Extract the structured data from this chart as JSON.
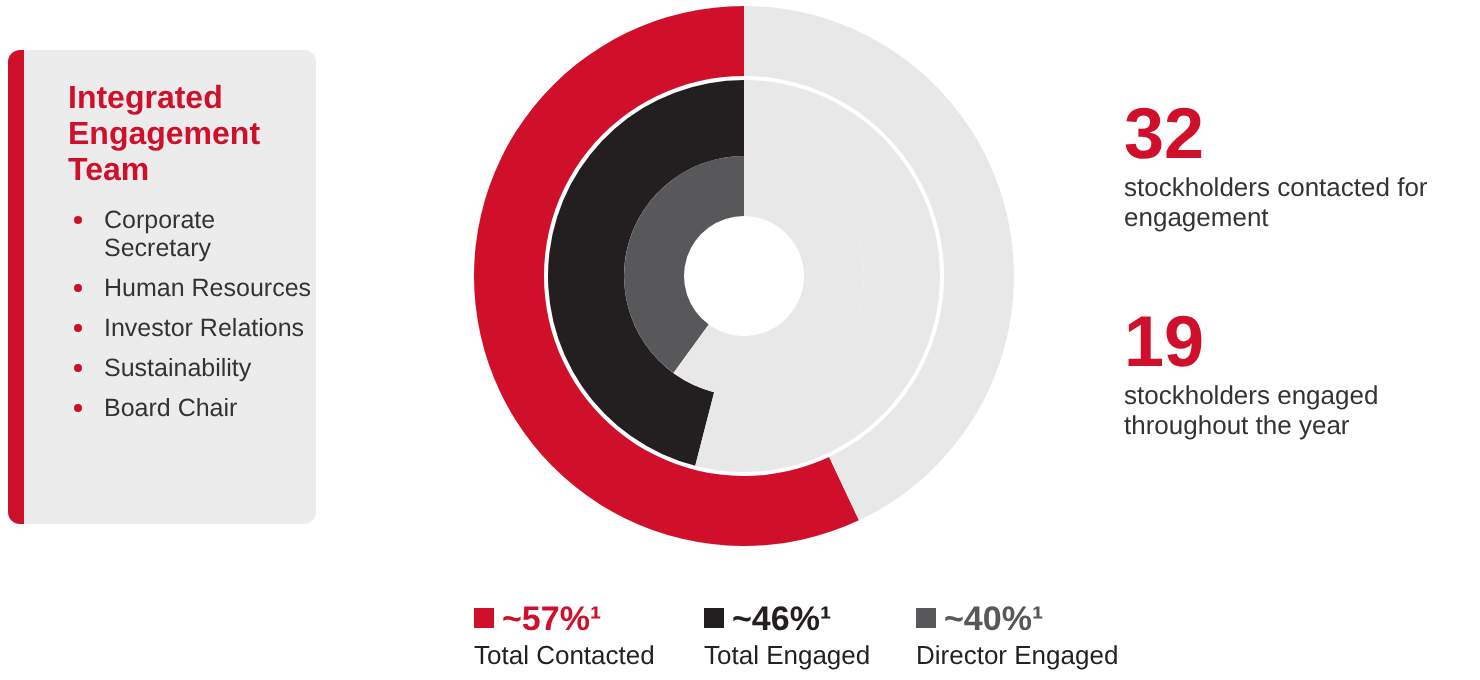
{
  "chart_data": [
    {
      "type": "other",
      "title": "Integrated Engagement Team",
      "annotations": [
        "Corporate Secretary",
        "Human Resources",
        "Investor Relations",
        "Sustainability",
        "Board Chair"
      ]
    },
    {
      "type": "donut",
      "categories": [
        null,
        null
      ],
      "legend": "bottom",
      "series": [
        {
          "name": "~57%¹ Total Contacted",
          "values": [
            57,
            43
          ],
          "colors": [
            "#d0102b",
            "#e8e8e8"
          ]
        },
        {
          "name": "~46%¹ Total Engaged",
          "values": [
            46,
            54
          ],
          "colors": [
            "#231f20",
            "#e8e8e8"
          ]
        },
        {
          "name": "~40%¹ Director Engaged",
          "values": [
            40,
            60
          ],
          "colors": [
            "#58585a",
            "#e8e8e8"
          ]
        }
      ],
      "annotations": [
        "32",
        "stockholders contacted for engagement",
        "19",
        "stockholders engaged throughout the year"
      ]
    }
  ]
}
